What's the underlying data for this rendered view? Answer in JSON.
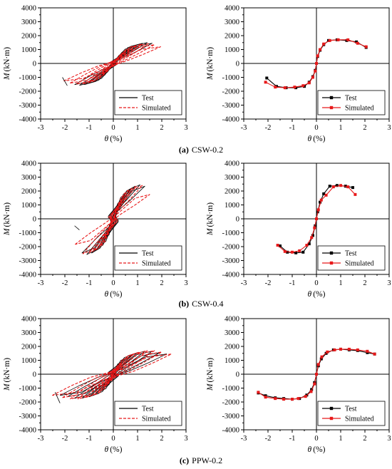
{
  "figure": {
    "captions": [
      {
        "label": "(a)",
        "name": "CSW-0.2"
      },
      {
        "label": "(b)",
        "name": "CSW-0.4"
      },
      {
        "label": "(c)",
        "name": "PPW-0.2"
      }
    ]
  },
  "colors": {
    "test": "#000000",
    "simulated": "#e8191a",
    "axis": "#000000"
  },
  "chart_data": [
    {
      "id": "a-hysteresis",
      "type": "line",
      "xlabel": "θ (%)",
      "ylabel": "M (kN·m)",
      "xlim": [
        -3,
        3
      ],
      "ylim": [
        -4000,
        4000
      ],
      "xticks": [
        "-3",
        "-2",
        "-1",
        "0",
        "1",
        "2",
        "3"
      ],
      "yticks": [
        "-4000",
        "-3000",
        "-2000",
        "-1000",
        "0",
        "1000",
        "2000",
        "3000",
        "4000"
      ],
      "legend": {
        "position": "bottom-right",
        "entries": [
          "Test",
          "Simulated"
        ]
      },
      "loops": {
        "test": [
          [
            0.2,
            400
          ],
          [
            0.4,
            700
          ],
          [
            0.6,
            950
          ],
          [
            0.8,
            1200
          ],
          [
            1.0,
            1350
          ],
          [
            1.2,
            1450
          ],
          [
            1.4,
            1500
          ],
          [
            1.6,
            1450
          ]
        ],
        "simulated": [
          [
            0.2,
            380
          ],
          [
            0.45,
            720
          ],
          [
            0.7,
            1000
          ],
          [
            0.95,
            1250
          ],
          [
            1.2,
            1400
          ],
          [
            1.45,
            1420
          ],
          [
            1.7,
            1350
          ],
          [
            1.95,
            1200
          ]
        ],
        "neg_end": [
          -2.1,
          -1000
        ]
      }
    },
    {
      "id": "a-skeleton",
      "type": "line",
      "xlabel": "θ (%)",
      "ylabel": "M (kN·m)",
      "xlim": [
        -3,
        3
      ],
      "ylim": [
        -4000,
        4000
      ],
      "xticks": [
        "-3",
        "-2",
        "-1",
        "0",
        "1",
        "2",
        "3"
      ],
      "yticks": [
        "-4000",
        "-3000",
        "-2000",
        "-1000",
        "0",
        "1000",
        "2000",
        "3000",
        "4000"
      ],
      "legend": {
        "position": "bottom-right",
        "entries": [
          "Test",
          "Simulated"
        ]
      },
      "series": [
        {
          "name": "Test",
          "x": [
            -2.05,
            -1.65,
            -1.25,
            -0.85,
            -0.5,
            -0.3,
            -0.15,
            -0.05,
            0,
            0.05,
            0.15,
            0.3,
            0.5,
            0.85,
            1.25,
            1.65,
            2.05
          ],
          "y": [
            -1050,
            -1650,
            -1750,
            -1750,
            -1650,
            -1350,
            -950,
            -500,
            0,
            500,
            950,
            1350,
            1650,
            1700,
            1650,
            1550,
            1150
          ]
        },
        {
          "name": "Simulated",
          "x": [
            -2.1,
            -1.7,
            -1.3,
            -0.9,
            -0.55,
            -0.3,
            -0.15,
            -0.05,
            0,
            0.05,
            0.15,
            0.3,
            0.55,
            0.9,
            1.3,
            1.7,
            2.05
          ],
          "y": [
            -1350,
            -1700,
            -1750,
            -1700,
            -1600,
            -1400,
            -1000,
            -550,
            0,
            550,
            1000,
            1400,
            1650,
            1700,
            1700,
            1450,
            1200
          ]
        }
      ]
    },
    {
      "id": "b-hysteresis",
      "type": "line",
      "xlabel": "θ (%)",
      "ylabel": "M (kN·m)",
      "xlim": [
        -3,
        3
      ],
      "ylim": [
        -4000,
        4000
      ],
      "xticks": [
        "-3",
        "-2",
        "-1",
        "0",
        "1",
        "2",
        "3"
      ],
      "yticks": [
        "-4000",
        "-3000",
        "-2000",
        "-1000",
        "0",
        "1000",
        "2000",
        "3000",
        "4000"
      ],
      "legend": {
        "position": "bottom-right",
        "entries": [
          "Test",
          "Simulated"
        ]
      },
      "loops": {
        "test": [
          [
            0.15,
            700
          ],
          [
            0.3,
            1300
          ],
          [
            0.5,
            1800
          ],
          [
            0.7,
            2100
          ],
          [
            0.9,
            2350
          ],
          [
            1.1,
            2450
          ],
          [
            1.3,
            2350
          ]
        ],
        "simulated": [
          [
            0.15,
            650
          ],
          [
            0.35,
            1300
          ],
          [
            0.55,
            1850
          ],
          [
            0.75,
            2150
          ],
          [
            0.95,
            2350
          ],
          [
            1.2,
            2400
          ],
          [
            1.5,
            1750
          ]
        ],
        "neg_end": [
          -1.6,
          -500
        ]
      }
    },
    {
      "id": "b-skeleton",
      "type": "line",
      "xlabel": "θ (%)",
      "ylabel": "M (kN·m)",
      "xlim": [
        -3,
        3
      ],
      "ylim": [
        -4000,
        4000
      ],
      "xticks": [
        "-3",
        "-2",
        "-1",
        "0",
        "1",
        "2",
        "3"
      ],
      "yticks": [
        "-4000",
        "-3000",
        "-2000",
        "-1000",
        "0",
        "1000",
        "2000",
        "3000",
        "4000"
      ],
      "legend": {
        "position": "bottom-right",
        "entries": [
          "Test",
          "Simulated"
        ]
      },
      "series": [
        {
          "name": "Test",
          "x": [
            -1.5,
            -1.2,
            -0.85,
            -0.55,
            -0.3,
            -0.15,
            -0.05,
            0,
            0.05,
            0.15,
            0.3,
            0.55,
            0.85,
            1.2,
            1.5
          ],
          "y": [
            -1950,
            -2400,
            -2450,
            -2400,
            -1800,
            -1200,
            -500,
            0,
            500,
            1200,
            1800,
            2350,
            2400,
            2350,
            2250
          ]
        },
        {
          "name": "Simulated",
          "x": [
            -1.6,
            -1.3,
            -1.0,
            -0.7,
            -0.4,
            -0.2,
            -0.08,
            0,
            0.08,
            0.2,
            0.4,
            0.7,
            1.0,
            1.3,
            1.6
          ],
          "y": [
            -1900,
            -2350,
            -2400,
            -2300,
            -1900,
            -1350,
            -650,
            0,
            650,
            1350,
            1700,
            2300,
            2400,
            2300,
            1750
          ]
        }
      ]
    },
    {
      "id": "c-hysteresis",
      "type": "line",
      "xlabel": "θ (%)",
      "ylabel": "M (kN·m)",
      "xlim": [
        -3,
        3
      ],
      "ylim": [
        -4000,
        4000
      ],
      "xticks": [
        "-3",
        "-2",
        "-1",
        "0",
        "1",
        "2",
        "3"
      ],
      "yticks": [
        "-4000",
        "-3000",
        "-2000",
        "-1000",
        "0",
        "1000",
        "2000",
        "3000",
        "4000"
      ],
      "legend": {
        "position": "bottom-right",
        "entries": [
          "Test",
          "Simulated"
        ]
      },
      "loops": {
        "test": [
          [
            0.15,
            500
          ],
          [
            0.3,
            850
          ],
          [
            0.5,
            1150
          ],
          [
            0.75,
            1400
          ],
          [
            1.0,
            1550
          ],
          [
            1.3,
            1650
          ],
          [
            1.6,
            1650
          ],
          [
            1.9,
            1550
          ],
          [
            2.2,
            1450
          ]
        ],
        "simulated": [
          [
            0.15,
            450
          ],
          [
            0.35,
            850
          ],
          [
            0.6,
            1200
          ],
          [
            0.85,
            1450
          ],
          [
            1.1,
            1600
          ],
          [
            1.4,
            1700
          ],
          [
            1.7,
            1700
          ],
          [
            2.0,
            1600
          ],
          [
            2.4,
            1450
          ]
        ],
        "neg_end": [
          -2.4,
          -1300
        ]
      }
    },
    {
      "id": "c-skeleton",
      "type": "line",
      "xlabel": "θ (%)",
      "ylabel": "M (kN·m)",
      "xlim": [
        -3,
        3
      ],
      "ylim": [
        -4000,
        4000
      ],
      "xticks": [
        "-3",
        "-2",
        "-1",
        "0",
        "1",
        "2",
        "3"
      ],
      "yticks": [
        "-4000",
        "-3000",
        "-2000",
        "-1000",
        "0",
        "1000",
        "2000",
        "3000",
        "4000"
      ],
      "legend": {
        "position": "bottom-right",
        "entries": [
          "Test",
          "Simulated"
        ]
      },
      "series": [
        {
          "name": "Test",
          "x": [
            -2.4,
            -2.1,
            -1.7,
            -1.35,
            -1.0,
            -0.7,
            -0.4,
            -0.2,
            -0.08,
            0,
            0.08,
            0.2,
            0.4,
            0.7,
            1.0,
            1.35,
            1.7,
            2.1,
            2.4
          ],
          "y": [
            -1350,
            -1550,
            -1700,
            -1750,
            -1800,
            -1750,
            -1500,
            -1100,
            -600,
            0,
            600,
            1100,
            1500,
            1750,
            1800,
            1750,
            1700,
            1550,
            1450
          ]
        },
        {
          "name": "Simulated",
          "x": [
            -2.4,
            -2.1,
            -1.7,
            -1.35,
            -1.0,
            -0.75,
            -0.45,
            -0.22,
            -0.08,
            0,
            0.08,
            0.22,
            0.45,
            0.75,
            1.0,
            1.35,
            1.7,
            2.1,
            2.4
          ],
          "y": [
            -1300,
            -1650,
            -1750,
            -1800,
            -1800,
            -1750,
            -1600,
            -1250,
            -700,
            0,
            700,
            1250,
            1600,
            1750,
            1800,
            1800,
            1750,
            1650,
            1450
          ]
        }
      ]
    }
  ]
}
